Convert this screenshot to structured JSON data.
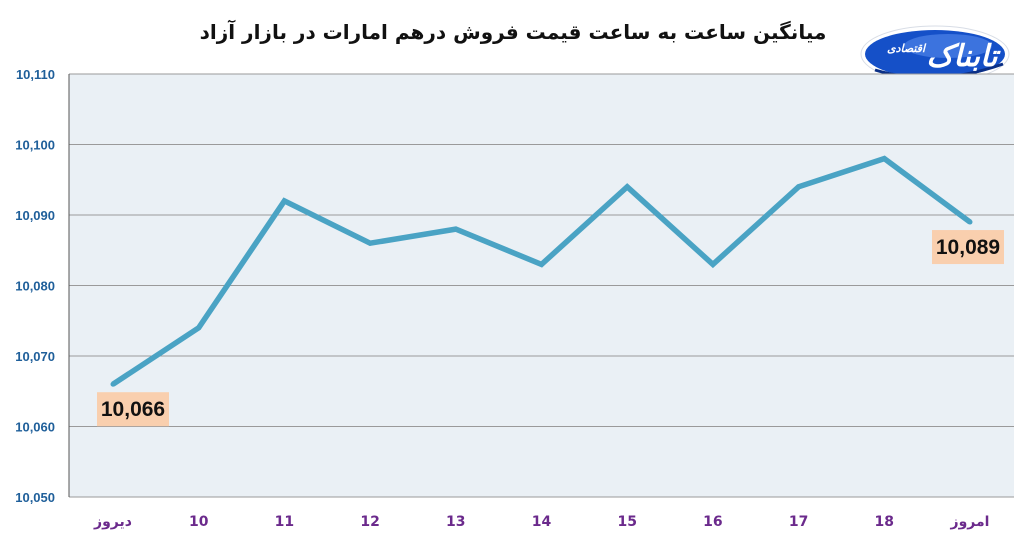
{
  "chart_data": {
    "type": "line",
    "title": "میانگین ساعت به ساعت قیمت فروش درهم امارات در بازار آزاد",
    "categories": [
      "دیروز",
      "10",
      "11",
      "12",
      "13",
      "14",
      "15",
      "16",
      "17",
      "18",
      "امروز"
    ],
    "series": [
      {
        "values": [
          10066,
          10074,
          10092,
          10086,
          10088,
          10083,
          10094,
          10083,
          10094,
          10098,
          10089
        ]
      }
    ],
    "ylim": [
      10050,
      10110
    ],
    "yticks": [
      10050,
      10060,
      10070,
      10080,
      10090,
      10100,
      10110
    ],
    "ytick_labels": [
      "10,050",
      "10,060",
      "10,070",
      "10,080",
      "10,090",
      "10,100",
      "10,110"
    ],
    "data_labels": [
      {
        "index": 0,
        "text": "10,066"
      },
      {
        "index": 10,
        "text": "10,089"
      }
    ],
    "grid": true,
    "colors": {
      "line": "#4aa3c4",
      "plot_background": "#eaf0f5",
      "label_background": "#f9cfae",
      "gridline": "#9a9a9a"
    }
  },
  "logo": {
    "text": "تابناک",
    "subtext": "اقتصادی",
    "icon": "tabnak-logo-icon"
  }
}
